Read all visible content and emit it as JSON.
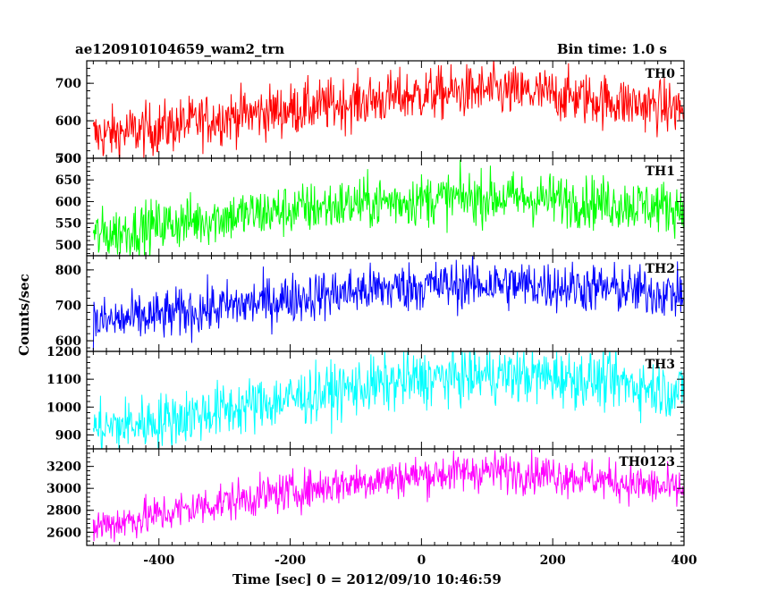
{
  "header": {
    "title_left": "ae120910104659_wam2_trn",
    "title_right": "Bin time: 1.0 s"
  },
  "axes": {
    "xlabel": "Time [sec] 0 = 2012/09/10 10:46:59",
    "ylabel": "Counts/sec"
  },
  "chart_data": {
    "type": "line",
    "x_range": [
      -510,
      400
    ],
    "x_ticks": [
      -400,
      -200,
      0,
      200,
      400
    ],
    "bin_time": 1.0,
    "panels": [
      {
        "name": "TH0",
        "color": "#ff0000",
        "ylim": [
          500,
          760
        ],
        "yticks": [
          500,
          600,
          700
        ],
        "trend": [
          [
            -500,
            560
          ],
          [
            -400,
            580
          ],
          [
            -300,
            610
          ],
          [
            -200,
            630
          ],
          [
            -100,
            650
          ],
          [
            0,
            670
          ],
          [
            100,
            680
          ],
          [
            200,
            670
          ],
          [
            300,
            650
          ],
          [
            400,
            630
          ]
        ],
        "noise": 35
      },
      {
        "name": "TH1",
        "color": "#00ff00",
        "ylim": [
          475,
          700
        ],
        "yticks": [
          500,
          550,
          600,
          650,
          700
        ],
        "trend": [
          [
            -500,
            520
          ],
          [
            -400,
            545
          ],
          [
            -300,
            565
          ],
          [
            -200,
            580
          ],
          [
            -100,
            595
          ],
          [
            0,
            605
          ],
          [
            100,
            610
          ],
          [
            200,
            605
          ],
          [
            300,
            595
          ],
          [
            400,
            585
          ]
        ],
        "noise": 30
      },
      {
        "name": "TH2",
        "color": "#0000ff",
        "ylim": [
          570,
          840
        ],
        "yticks": [
          600,
          700,
          800
        ],
        "trend": [
          [
            -500,
            650
          ],
          [
            -400,
            670
          ],
          [
            -300,
            695
          ],
          [
            -200,
            720
          ],
          [
            -100,
            740
          ],
          [
            0,
            755
          ],
          [
            100,
            760
          ],
          [
            200,
            755
          ],
          [
            300,
            745
          ],
          [
            400,
            730
          ]
        ],
        "noise": 35
      },
      {
        "name": "TH3",
        "color": "#00ffff",
        "ylim": [
          850,
          1200
        ],
        "yticks": [
          900,
          1000,
          1100,
          1200
        ],
        "trend": [
          [
            -500,
            920
          ],
          [
            -400,
            950
          ],
          [
            -300,
            990
          ],
          [
            -200,
            1030
          ],
          [
            -100,
            1070
          ],
          [
            0,
            1100
          ],
          [
            100,
            1115
          ],
          [
            200,
            1110
          ],
          [
            300,
            1090
          ],
          [
            400,
            1050
          ]
        ],
        "noise": 50
      },
      {
        "name": "TH0123",
        "color": "#ff00ff",
        "ylim": [
          2480,
          3360
        ],
        "yticks": [
          2600,
          2800,
          3000,
          3200
        ],
        "trend": [
          [
            -500,
            2650
          ],
          [
            -400,
            2760
          ],
          [
            -300,
            2880
          ],
          [
            -200,
            2970
          ],
          [
            -100,
            3060
          ],
          [
            0,
            3120
          ],
          [
            100,
            3160
          ],
          [
            200,
            3130
          ],
          [
            300,
            3060
          ],
          [
            400,
            2980
          ]
        ],
        "noise": 90
      }
    ]
  }
}
